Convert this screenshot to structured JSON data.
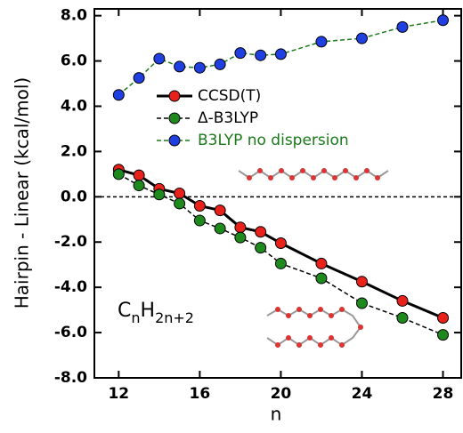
{
  "chart_data": {
    "type": "line",
    "x_label": "n",
    "y_label": "Hairpin - Linear (kcal/mol)",
    "x": [
      12,
      13,
      14,
      15,
      16,
      17,
      18,
      19,
      20,
      22,
      24,
      26,
      28
    ],
    "series": [
      {
        "name": "CCSD(T)",
        "color": "#e8211b",
        "line_color": "#000000",
        "dashed": false,
        "values": [
          1.2,
          0.95,
          0.35,
          0.15,
          -0.4,
          -0.6,
          -1.35,
          -1.55,
          -2.05,
          -2.95,
          -3.75,
          -4.6,
          -5.35
        ]
      },
      {
        "name": "Δ-B3LYP",
        "color": "#1e8a1e",
        "line_color": "#000000",
        "dashed": true,
        "values": [
          1.0,
          0.5,
          0.1,
          -0.3,
          -1.05,
          -1.4,
          -1.8,
          -2.25,
          -2.95,
          -3.6,
          -4.7,
          -5.35,
          -6.1
        ]
      },
      {
        "name": "B3LYP no dispersion",
        "color": "#1f3fe0",
        "line_color": "#1a7a1a",
        "dashed": true,
        "label_color": "#1a7a1a",
        "values": [
          4.5,
          5.25,
          6.1,
          5.75,
          5.7,
          5.85,
          6.35,
          6.25,
          6.3,
          6.85,
          7.0,
          7.5,
          7.8
        ]
      }
    ],
    "formula": {
      "c": "C",
      "c_sub": "n",
      "h": "H",
      "h_sub": "2n+2"
    },
    "reference_line": 0,
    "xlim": [
      10.8,
      28.9
    ],
    "ylim": [
      -8,
      8.3
    ],
    "xticks": [
      12,
      16,
      20,
      24,
      28
    ],
    "yticks": [
      {
        "value": -8,
        "label": "-8.0"
      },
      {
        "value": -6,
        "label": "-6.0"
      },
      {
        "value": -4,
        "label": "-4.0"
      },
      {
        "value": -2,
        "label": "-2.0"
      },
      {
        "value": 0,
        "label": "0.0"
      },
      {
        "value": 2,
        "label": "2.0"
      },
      {
        "value": 4,
        "label": "4.0"
      },
      {
        "value": 6,
        "label": "6.0"
      },
      {
        "value": 8,
        "label": "8.0"
      }
    ]
  }
}
